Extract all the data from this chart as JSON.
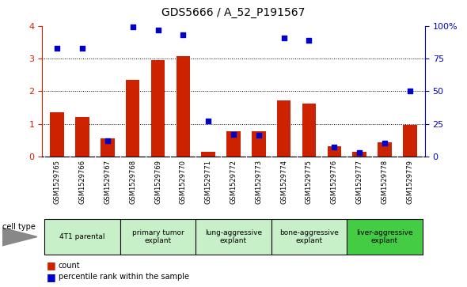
{
  "title": "GDS5666 / A_52_P191567",
  "samples": [
    "GSM1529765",
    "GSM1529766",
    "GSM1529767",
    "GSM1529768",
    "GSM1529769",
    "GSM1529770",
    "GSM1529771",
    "GSM1529772",
    "GSM1529773",
    "GSM1529774",
    "GSM1529775",
    "GSM1529776",
    "GSM1529777",
    "GSM1529778",
    "GSM1529779"
  ],
  "counts": [
    1.35,
    1.2,
    0.55,
    2.35,
    2.95,
    3.07,
    0.15,
    0.78,
    0.78,
    1.72,
    1.62,
    0.3,
    0.13,
    0.42,
    0.97
  ],
  "percentiles": [
    83,
    83,
    12,
    99,
    97,
    93,
    27,
    17,
    16,
    91,
    89,
    7,
    3,
    10,
    50
  ],
  "cell_types": [
    {
      "label": "4T1 parental",
      "start": 0,
      "end": 3,
      "color": "#c8f0c8"
    },
    {
      "label": "primary tumor\nexplant",
      "start": 3,
      "end": 6,
      "color": "#c8f0c8"
    },
    {
      "label": "lung-aggressive\nexplant",
      "start": 6,
      "end": 9,
      "color": "#c8f0c8"
    },
    {
      "label": "bone-aggressive\nexplant",
      "start": 9,
      "end": 12,
      "color": "#c8f0c8"
    },
    {
      "label": "liver-aggressive\nexplant",
      "start": 12,
      "end": 15,
      "color": "#44cc44"
    }
  ],
  "ylim_left": [
    0,
    4
  ],
  "ylim_right": [
    0,
    100
  ],
  "bar_color": "#CC2200",
  "dot_color": "#0000CC",
  "tick_label_color_left": "#CC2200",
  "tick_label_color_right": "#0000CC",
  "legend_count_label": "count",
  "legend_pct_label": "percentile rank within the sample",
  "cell_type_label": "cell type",
  "yticks_left": [
    0,
    1,
    2,
    3,
    4
  ],
  "yticks_right": [
    0,
    25,
    50,
    75,
    100
  ],
  "xtick_bg_color": "#cccccc",
  "cell_border_color": "#aaaaaa"
}
